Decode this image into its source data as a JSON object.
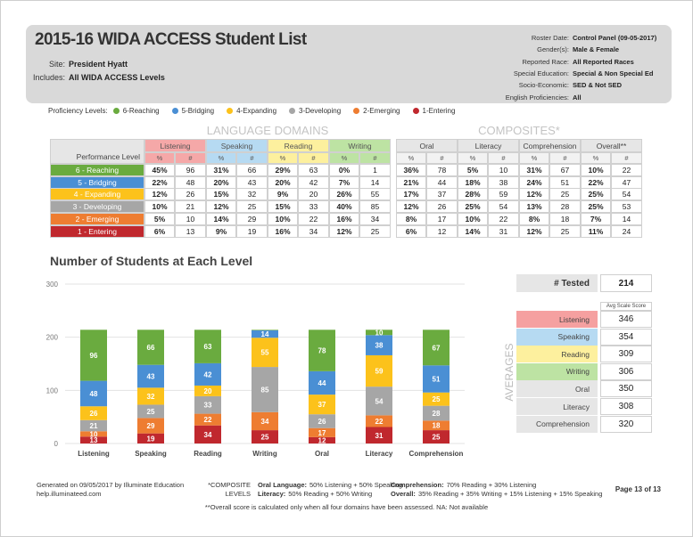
{
  "header": {
    "title": "2015-16 WIDA ACCESS Student List",
    "site_label": "Site:",
    "site": "President Hyatt",
    "includes_label": "Includes:",
    "includes": "All WIDA ACCESS Levels",
    "roster": [
      {
        "label": "Roster Date:",
        "value": "Control Panel (09-05-2017)"
      },
      {
        "label": "Gender(s):",
        "value": "Male & Female"
      },
      {
        "label": "Reported Race:",
        "value": "All Reported Races"
      },
      {
        "label": "Special Education:",
        "value": "Special & Non Special Ed"
      },
      {
        "label": "Socio-Economic:",
        "value": "SED & Not SED"
      },
      {
        "label": "English Proficiencies:",
        "value": "All"
      }
    ]
  },
  "legend": {
    "label": "Proficiency Levels:",
    "items": [
      {
        "name": "6-Reaching",
        "color": "#6aab3f"
      },
      {
        "name": "5-Bridging",
        "color": "#4a8fd4"
      },
      {
        "name": "4-Expanding",
        "color": "#fcc21b"
      },
      {
        "name": "3-Developing",
        "color": "#a6a6a6"
      },
      {
        "name": "2-Emerging",
        "color": "#ee7d31"
      },
      {
        "name": "1-Entering",
        "color": "#c0282e"
      }
    ]
  },
  "table": {
    "groups": [
      "LANGUAGE DOMAINS",
      "COMPOSITES*"
    ],
    "row_header": "Performance Level",
    "sub_headers": [
      "%",
      "#"
    ],
    "columns": [
      {
        "name": "Listening",
        "color": "#f5a8a8"
      },
      {
        "name": "Speaking",
        "color": "#b6daf2"
      },
      {
        "name": "Reading",
        "color": "#fdf09e"
      },
      {
        "name": "Writing",
        "color": "#bde3a3"
      },
      {
        "name": "Oral",
        "color": "#e6e6e6"
      },
      {
        "name": "Literacy",
        "color": "#e6e6e6"
      },
      {
        "name": "Comprehension",
        "color": "#e6e6e6"
      },
      {
        "name": "Overall**",
        "color": "#e6e6e6"
      }
    ],
    "rows": [
      {
        "label": "6 - Reaching",
        "cells": [
          [
            "45%",
            96
          ],
          [
            "31%",
            66
          ],
          [
            "29%",
            63
          ],
          [
            "0%",
            1
          ],
          [
            "36%",
            78
          ],
          [
            "5%",
            10
          ],
          [
            "31%",
            67
          ],
          [
            "10%",
            22
          ]
        ]
      },
      {
        "label": "5 - Bridging",
        "cells": [
          [
            "22%",
            48
          ],
          [
            "20%",
            43
          ],
          [
            "20%",
            42
          ],
          [
            "7%",
            14
          ],
          [
            "21%",
            44
          ],
          [
            "18%",
            38
          ],
          [
            "24%",
            51
          ],
          [
            "22%",
            47
          ]
        ]
      },
      {
        "label": "4 - Expanding",
        "cells": [
          [
            "12%",
            26
          ],
          [
            "15%",
            32
          ],
          [
            "9%",
            20
          ],
          [
            "26%",
            55
          ],
          [
            "17%",
            37
          ],
          [
            "28%",
            59
          ],
          [
            "12%",
            25
          ],
          [
            "25%",
            54
          ]
        ]
      },
      {
        "label": "3 - Developing",
        "cells": [
          [
            "10%",
            21
          ],
          [
            "12%",
            25
          ],
          [
            "15%",
            33
          ],
          [
            "40%",
            85
          ],
          [
            "12%",
            26
          ],
          [
            "25%",
            54
          ],
          [
            "13%",
            28
          ],
          [
            "25%",
            53
          ]
        ]
      },
      {
        "label": "2 - Emerging",
        "cells": [
          [
            "5%",
            10
          ],
          [
            "14%",
            29
          ],
          [
            "10%",
            22
          ],
          [
            "16%",
            34
          ],
          [
            "8%",
            17
          ],
          [
            "10%",
            22
          ],
          [
            "8%",
            18
          ],
          [
            "7%",
            14
          ]
        ]
      },
      {
        "label": "1 - Entering",
        "cells": [
          [
            "6%",
            13
          ],
          [
            "9%",
            19
          ],
          [
            "16%",
            34
          ],
          [
            "12%",
            25
          ],
          [
            "6%",
            12
          ],
          [
            "14%",
            31
          ],
          [
            "12%",
            25
          ],
          [
            "11%",
            24
          ]
        ]
      }
    ]
  },
  "chart_data": {
    "type": "bar",
    "stacked": true,
    "title": "Number of Students at Each Level",
    "categories": [
      "Listening",
      "Speaking",
      "Reading",
      "Writing",
      "Oral",
      "Literacy",
      "Comprehension"
    ],
    "series": [
      {
        "name": "1-Entering",
        "color": "#c0282e",
        "values": [
          13,
          19,
          34,
          25,
          12,
          31,
          25
        ]
      },
      {
        "name": "2-Emerging",
        "color": "#ee7d31",
        "values": [
          10,
          29,
          22,
          34,
          17,
          22,
          18
        ]
      },
      {
        "name": "3-Developing",
        "color": "#a6a6a6",
        "values": [
          21,
          25,
          33,
          85,
          26,
          54,
          28
        ]
      },
      {
        "name": "4-Expanding",
        "color": "#fcc21b",
        "values": [
          26,
          32,
          20,
          55,
          37,
          59,
          25
        ]
      },
      {
        "name": "5-Bridging",
        "color": "#4a8fd4",
        "values": [
          48,
          43,
          42,
          14,
          44,
          38,
          51
        ]
      },
      {
        "name": "6-Reaching",
        "color": "#6aab3f",
        "values": [
          96,
          66,
          63,
          1,
          78,
          10,
          67
        ]
      }
    ],
    "ylim": [
      0,
      300
    ],
    "yticks": [
      0,
      100,
      200,
      300
    ],
    "grid": true
  },
  "summary": {
    "tested_label": "# Tested",
    "tested": 214,
    "avg_header": "Avg Scale Score",
    "side_label": "AVERAGES",
    "rows": [
      {
        "name": "Listening",
        "value": 346,
        "color": "#f5a0a0"
      },
      {
        "name": "Speaking",
        "value": 354,
        "color": "#b6daf2"
      },
      {
        "name": "Reading",
        "value": 309,
        "color": "#fdf09e"
      },
      {
        "name": "Writing",
        "value": 306,
        "color": "#bde3a3"
      },
      {
        "name": "Oral",
        "value": 350,
        "color": "#e6e6e6"
      },
      {
        "name": "Literacy",
        "value": 308,
        "color": "#e6e6e6"
      },
      {
        "name": "Comprehension",
        "value": 320,
        "color": "#e6e6e6"
      }
    ]
  },
  "footer": {
    "generated": "Generated on 09/05/2017 by Illuminate Education",
    "help": "help.illuminateed.com",
    "composite_label": [
      "*COMPOSITE",
      "LEVELS"
    ],
    "definitions": [
      {
        "label": "Oral Language:",
        "text": "50% Listening + 50% Speaking"
      },
      {
        "label": "Literacy:",
        "text": "50% Reading + 50% Writing"
      },
      {
        "label": "Comprehension:",
        "text": "70% Reading + 30% Listening"
      },
      {
        "label": "Overall:",
        "text": "35% Reading + 35% Writing + 15% Listening + 15% Speaking"
      }
    ],
    "page": "Page 13 of 13",
    "note": "**Overall score is calculated only when all four domains have been assessed. NA: Not available"
  }
}
